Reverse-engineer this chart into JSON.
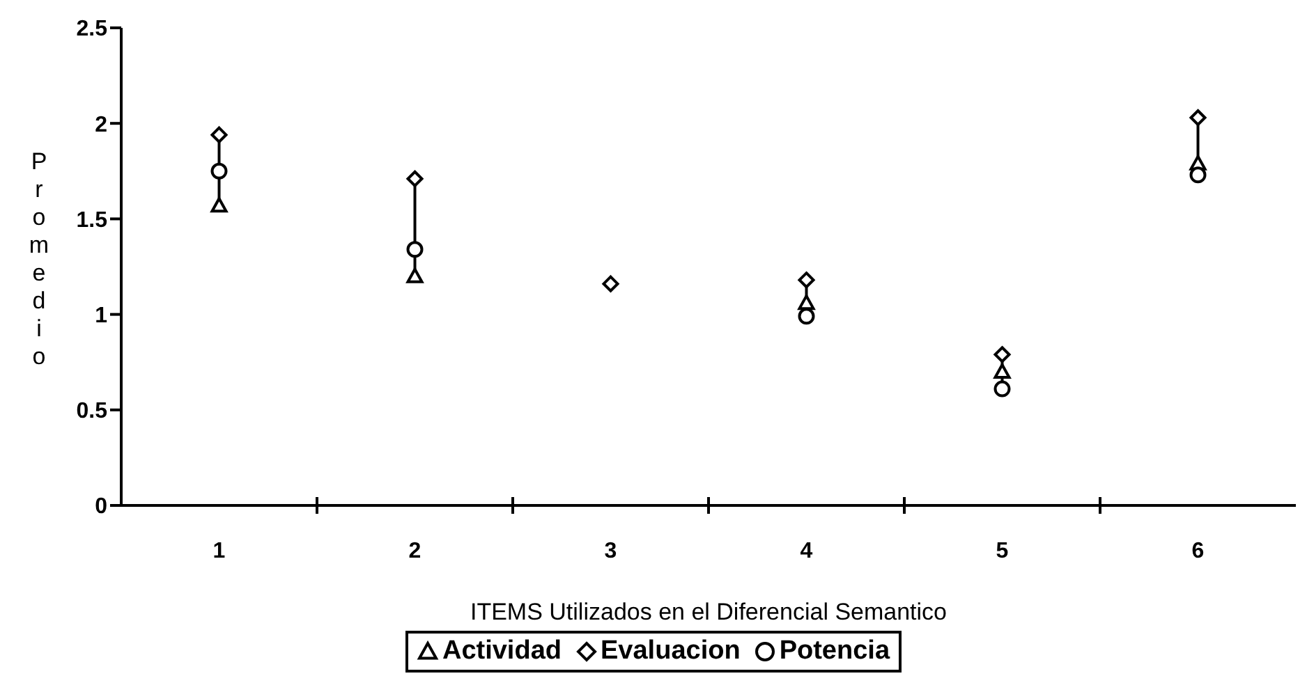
{
  "chart_data": {
    "type": "scatter",
    "xlabel": "ITEMS Utilizados en el Diferencial Semantico",
    "ylabel": "Promedio",
    "categories": [
      "1",
      "2",
      "3",
      "4",
      "5",
      "6"
    ],
    "series": [
      {
        "name": "Actividad",
        "color": "#000000",
        "marker": "triangle",
        "values": [
          1.57,
          1.2,
          null,
          1.06,
          0.7,
          1.79
        ]
      },
      {
        "name": "Evaluacion",
        "color": "#000000",
        "marker": "diamond",
        "values": [
          1.94,
          1.71,
          1.16,
          1.18,
          0.79,
          2.03
        ]
      },
      {
        "name": "Potencia",
        "color": "#000000",
        "marker": "circle",
        "values": [
          1.75,
          1.34,
          null,
          0.99,
          0.61,
          1.73
        ]
      }
    ],
    "ylim": [
      0,
      2.5
    ],
    "yticks": [
      0,
      0.5,
      1,
      1.5,
      2,
      2.5
    ],
    "grid": false,
    "legend": "bottom"
  }
}
